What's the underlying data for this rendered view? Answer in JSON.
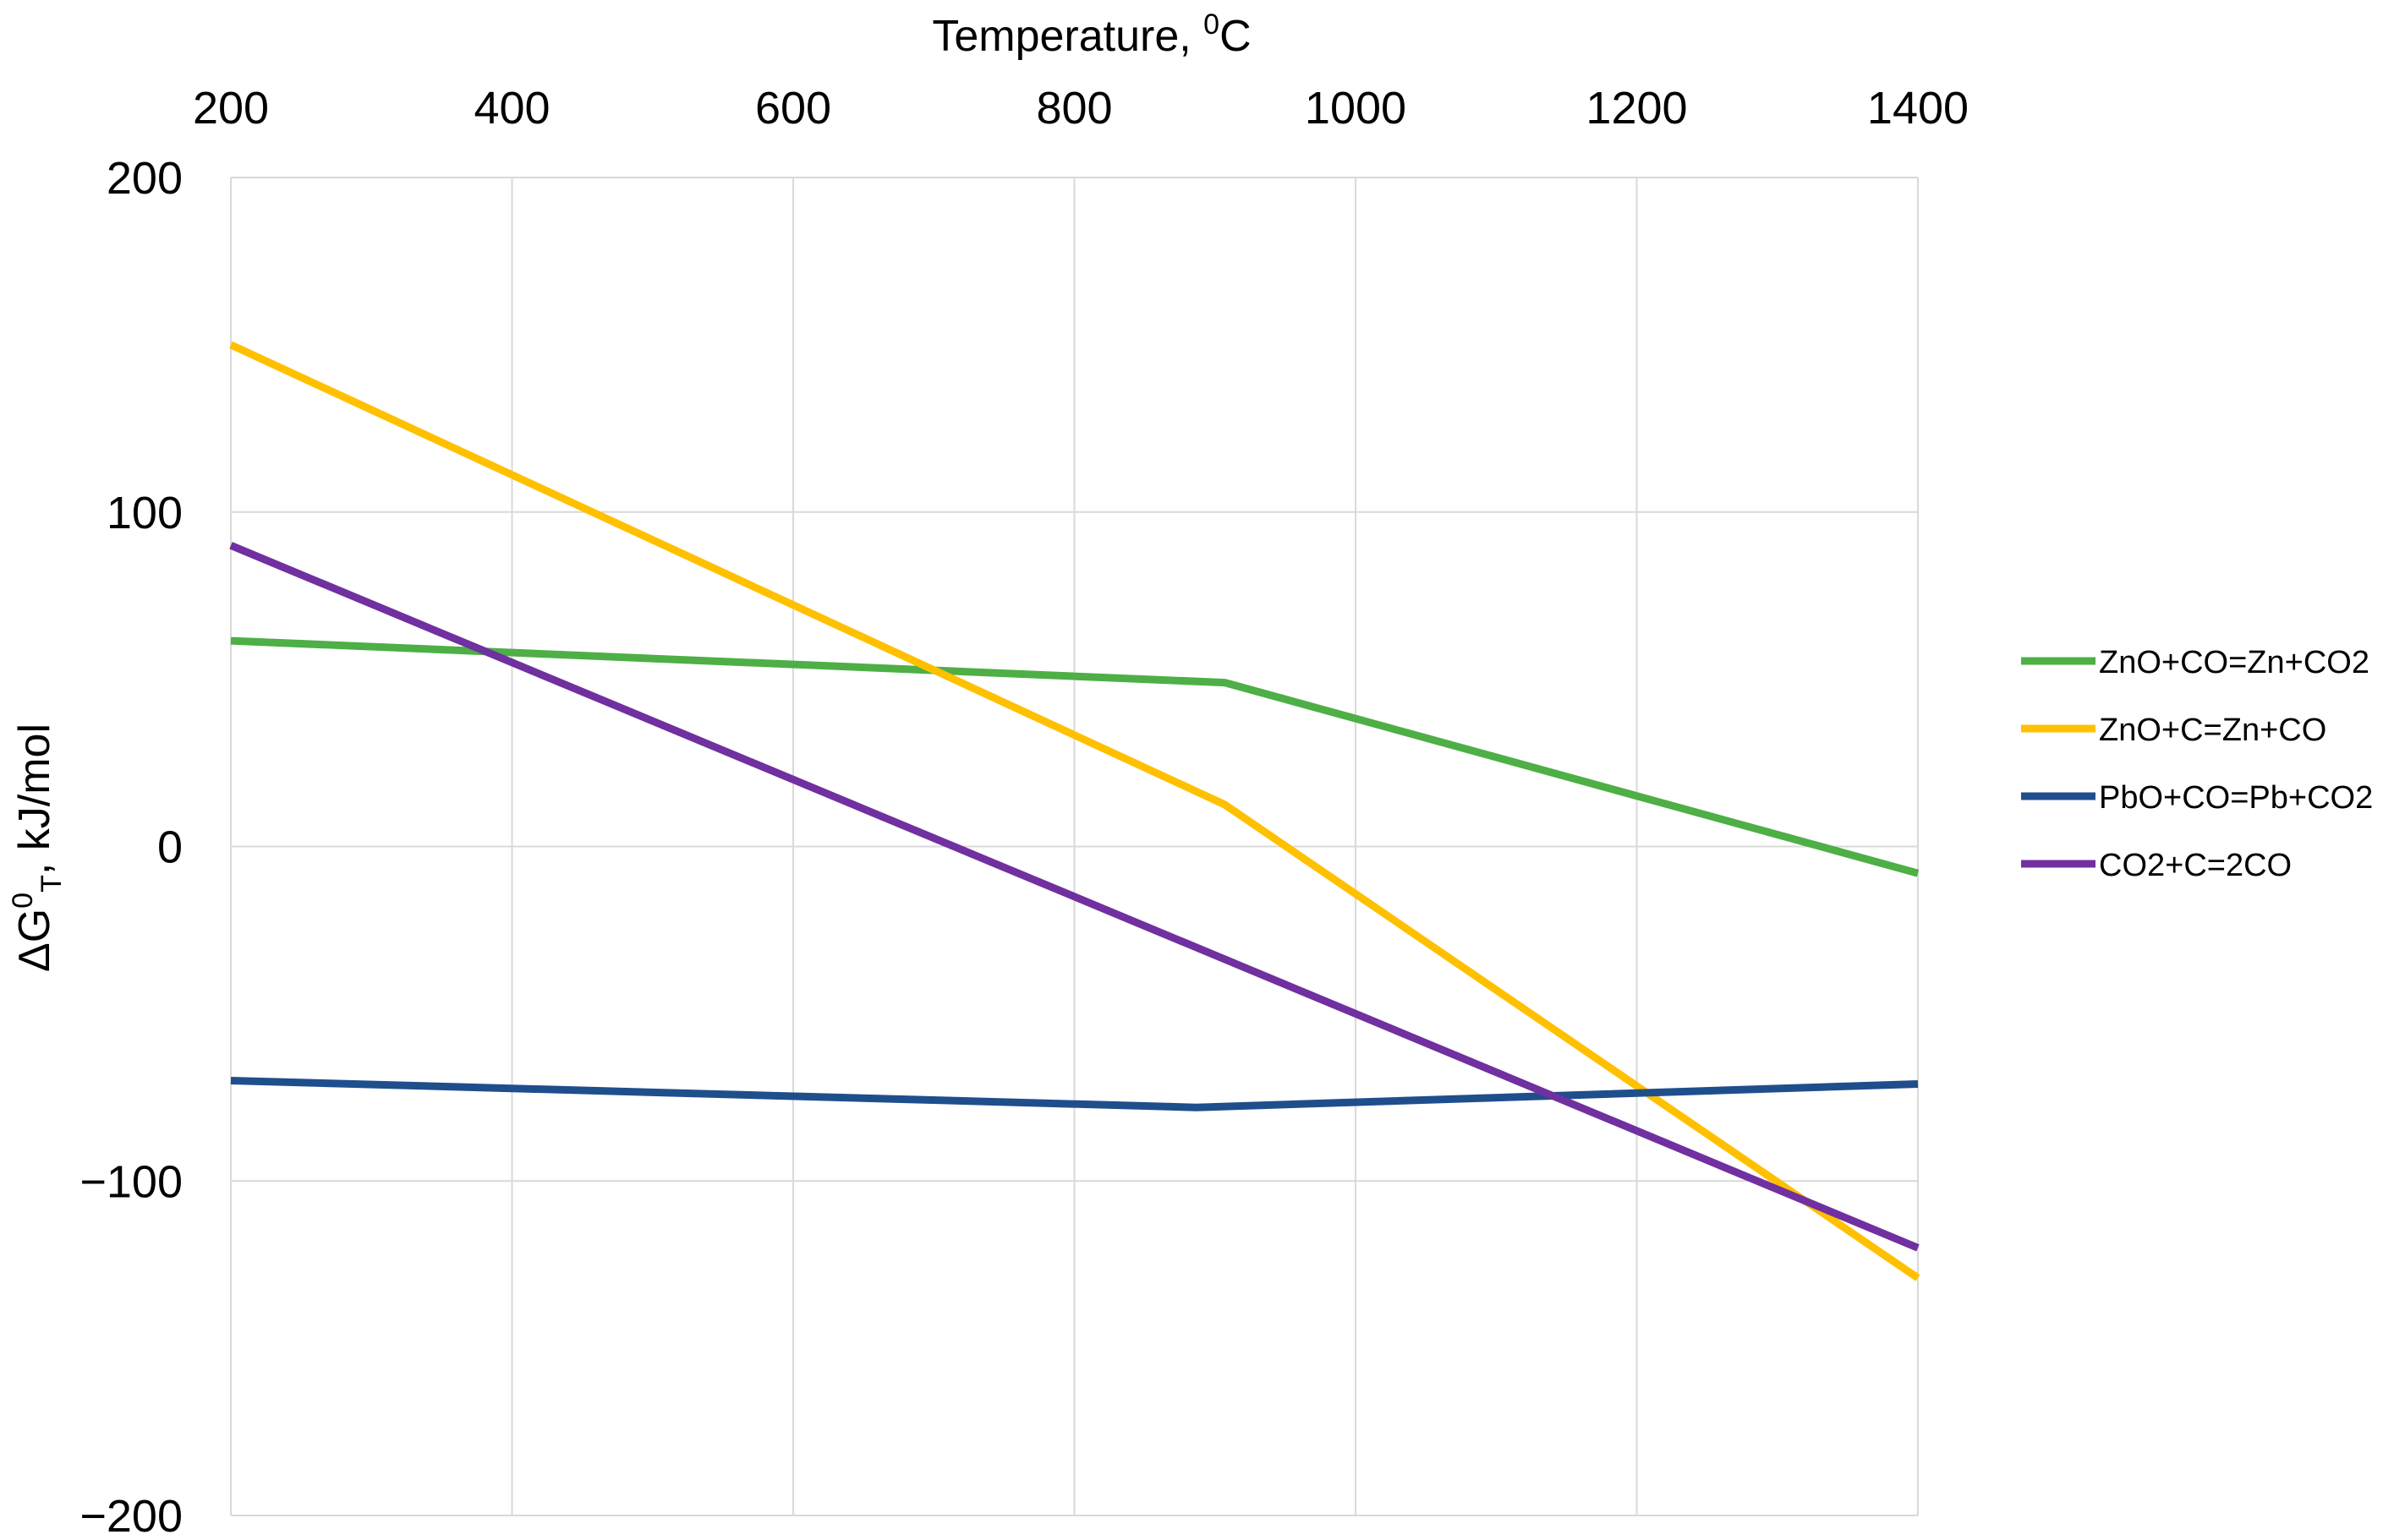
{
  "chart_data": {
    "type": "line",
    "title": "",
    "xlabel": "Temperature, ",
    "xlabel_sup": "0",
    "xlabel_unit": "C",
    "ylabel_main": "ΔG",
    "ylabel_sup": "0",
    "ylabel_sub": "T",
    "ylabel_rest": ", kJ/mol",
    "x_axis_position": "top",
    "xlim": [
      200,
      1400
    ],
    "ylim": [
      -200,
      200
    ],
    "x_ticks": [
      200,
      400,
      600,
      800,
      1000,
      1200,
      1400
    ],
    "x_tick_labels": [
      "200",
      "400",
      "600",
      "800",
      "1000",
      "1200",
      "1400"
    ],
    "y_ticks": [
      200,
      100,
      0,
      -100,
      -200
    ],
    "y_tick_labels": [
      "200",
      "100",
      "0",
      "−100",
      "−200"
    ],
    "grid": true,
    "legend_position": "right",
    "series": [
      {
        "name": "ZnO+CO=Zn+CO2",
        "color": "#4daf45",
        "points": [
          [
            200,
            61.5
          ],
          [
            907,
            49
          ],
          [
            1400,
            -8
          ]
        ]
      },
      {
        "name": "ZnO+C=Zn+CO",
        "color": "#ffc000",
        "points": [
          [
            200,
            150
          ],
          [
            907,
            12.5
          ],
          [
            1400,
            -129
          ]
        ]
      },
      {
        "name": "PbO+CO=Pb+CO2",
        "color": "#1f4e8c",
        "points": [
          [
            200,
            -70
          ],
          [
            887,
            -78
          ],
          [
            1400,
            -71
          ]
        ]
      },
      {
        "name": "CO2+C=2CO",
        "color": "#7030a0",
        "points": [
          [
            200,
            90
          ],
          [
            1400,
            -120
          ]
        ]
      }
    ]
  }
}
